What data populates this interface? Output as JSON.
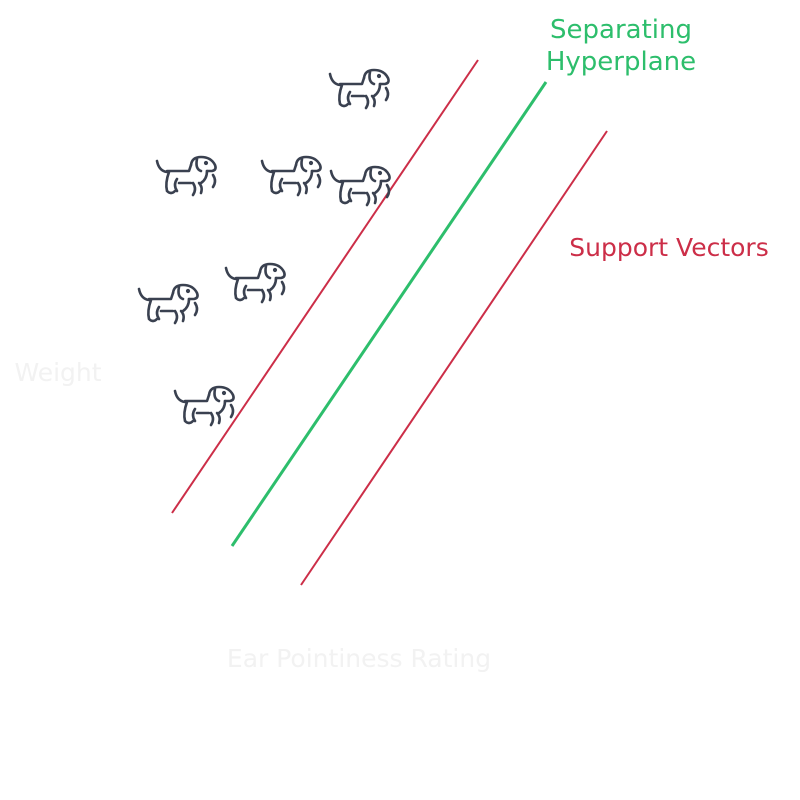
{
  "labels": {
    "hyperplane_line1": "Separating",
    "hyperplane_line2": "Hyperplane",
    "support_vectors": "Support Vectors",
    "y_axis": "Weight",
    "x_axis": "Ear Pointiness Rating"
  },
  "colors": {
    "hyperplane": "#2dbe6c",
    "support_vectors": "#cc2e48",
    "icon": "#3a4150",
    "axis_label": "#f2f2f2"
  },
  "icons": {
    "data_point": "dog-icon",
    "count": 7
  }
}
